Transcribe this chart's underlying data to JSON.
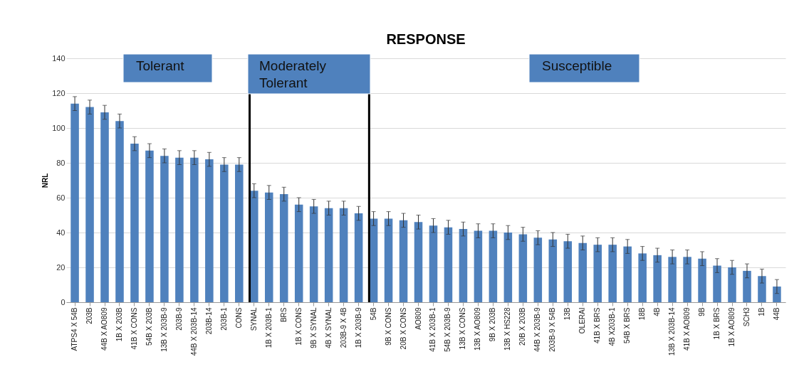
{
  "chart_data": {
    "type": "bar",
    "title": "RESPONSE",
    "ylabel": "NRL",
    "categories": [
      "ATPS4 X 54B",
      "203B",
      "44B X AO809",
      "1B X 203B",
      "41B X CONS",
      "54B X 203B",
      "13B X 203B-9",
      "203B-9",
      "44B X 203B-14",
      "203B-14",
      "203B-1",
      "CONS",
      "SYNAL",
      "1B X 203B-1",
      "BRS",
      "1B X CONS",
      "9B X SYNAL",
      "4B X SYNAL",
      "203B-9 X 4B",
      "1B X 203B-9",
      "54B",
      "9B X CONS",
      "20B X CONS",
      "AO809",
      "41B X 203B-1",
      "54B X 203B-9",
      "13B X CONS",
      "13B X AO809",
      "9B X 203B",
      "13B X HS228",
      "20B X 203B",
      "44B X 203B-9",
      "203B-9 X 54B",
      "13B",
      "OLERAI",
      "41B X BRS",
      "4B X203B-1",
      "54B X BRS",
      "18B",
      "4B",
      "13B X 203B-14",
      "41B X AO809",
      "9B",
      "1B X BRS",
      "1B X AO809",
      "SCH3",
      "1B",
      "44B"
    ],
    "values": [
      114,
      112,
      109,
      104,
      91,
      87,
      84,
      83,
      83,
      82,
      79,
      79,
      64,
      63,
      62,
      56,
      55,
      54,
      54,
      51,
      48,
      48,
      47,
      46,
      44,
      43,
      42,
      41,
      41,
      40,
      39,
      37,
      36,
      35,
      34,
      33,
      33,
      32,
      28,
      27,
      26,
      26,
      25,
      21,
      20,
      18,
      15,
      9
    ],
    "errors": [
      4,
      4,
      4,
      4,
      4,
      4,
      4,
      4,
      4,
      4,
      4,
      4,
      4,
      4,
      4,
      4,
      4,
      4,
      4,
      4,
      4,
      4,
      4,
      4,
      4,
      4,
      4,
      4,
      4,
      4,
      4,
      4,
      4,
      4,
      4,
      4,
      4,
      4,
      4,
      4,
      4,
      4,
      4,
      4,
      4,
      4,
      4,
      4
    ],
    "color": "#4f81bd",
    "ylim": [
      0,
      140
    ],
    "yticks": [
      0,
      20,
      40,
      60,
      80,
      100,
      120,
      140
    ],
    "grid": "y",
    "ref_lines": [
      {
        "axis": "x",
        "value": "SYNAL",
        "color": "#000000"
      },
      {
        "axis": "x",
        "value": "54B",
        "color": "#000000"
      }
    ],
    "annotations": [
      "Tolerant",
      "Moderately Tolerant",
      "Susceptible"
    ]
  }
}
